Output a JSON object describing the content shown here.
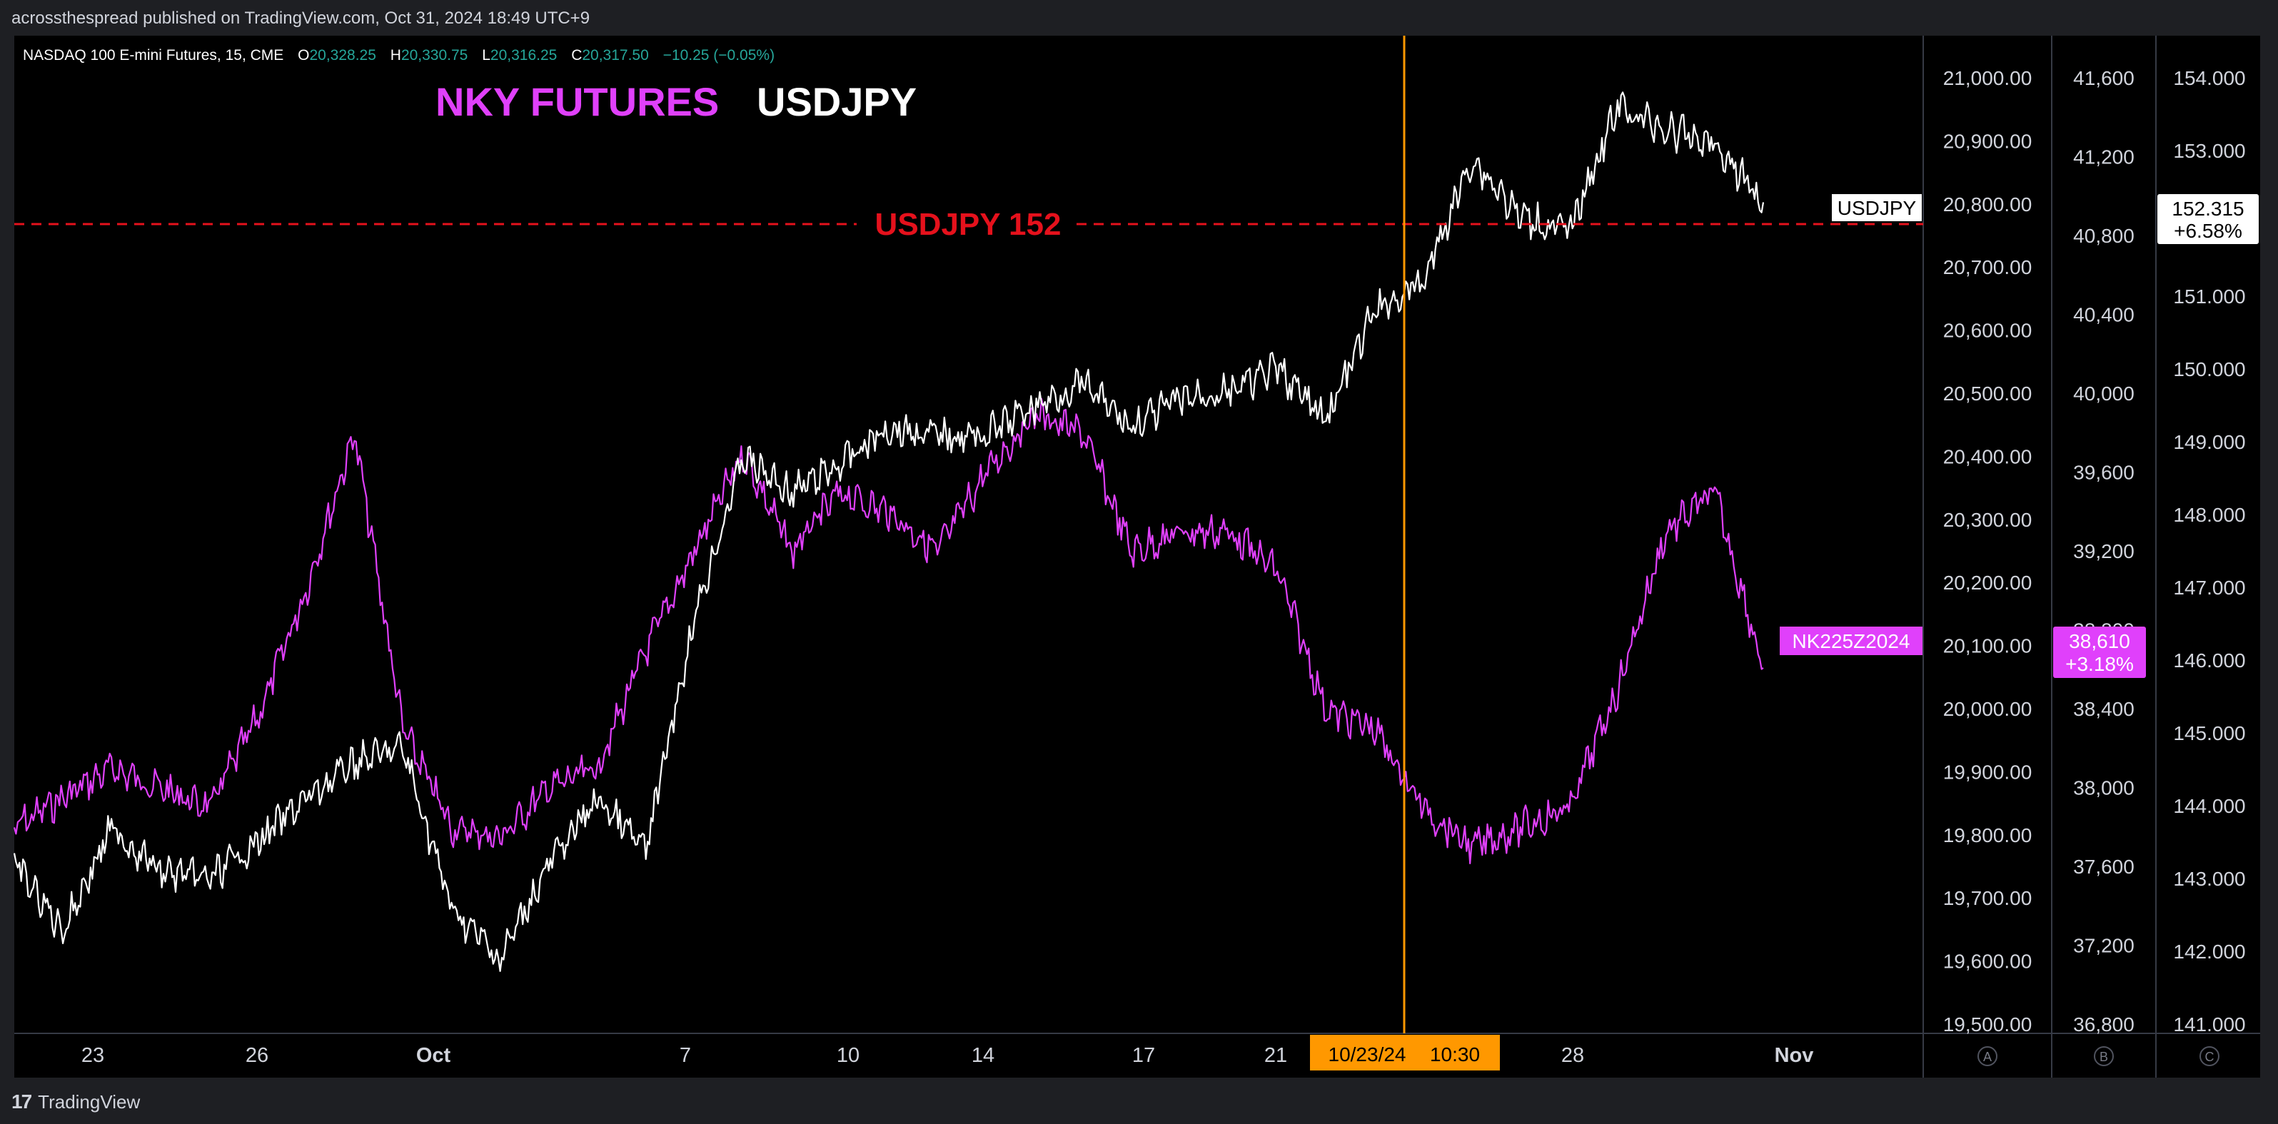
{
  "header": {
    "published": "acrossthespread published on TradingView.com, Oct 31, 2024 18:49 UTC+9"
  },
  "legend": {
    "symbol": "NASDAQ 100 E-mini Futures, 15, CME",
    "o_label": "O",
    "o_value": "20,328.25",
    "h_label": "H",
    "h_value": "20,330.75",
    "l_label": "L",
    "l_value": "20,316.25",
    "c_label": "C",
    "c_value": "20,317.50",
    "change": "−10.25 (−0.05%)"
  },
  "annotations": {
    "title_nky": "NKY FUTURES",
    "title_usdjpy": "USDJPY",
    "hline_label": "USDJPY 152",
    "usdjpy_tag": "USDJPY",
    "nk_tag": "NK225Z2024",
    "crosshair_date": "10/23/24",
    "crosshair_time": "10:30"
  },
  "colors": {
    "background": "#000000",
    "usdjpy_line": "#ffffff",
    "nky_line": "#e040fb",
    "hline": "#e5111c",
    "crosshair": "#ff9800",
    "value_up": "#26a69a"
  },
  "footer": {
    "brand": "TradingView"
  },
  "chart_data": {
    "type": "line",
    "x_ticks": [
      "23",
      "26",
      "Oct",
      "7",
      "10",
      "14",
      "17",
      "21",
      "28",
      "Nov"
    ],
    "axis_a": {
      "ticks": [
        "21,000.00",
        "20,900.00",
        "20,800.00",
        "20,700.00",
        "20,600.00",
        "20,500.00",
        "20,400.00",
        "20,300.00",
        "20,200.00",
        "20,100.00",
        "20,000.00",
        "19,900.00",
        "19,800.00",
        "19,700.00",
        "19,600.00",
        "19,500.00"
      ],
      "range": [
        19500,
        21000
      ],
      "label": "A"
    },
    "axis_b": {
      "ticks": [
        "41,600",
        "41,200",
        "40,800",
        "40,400",
        "40,000",
        "39,600",
        "39,200",
        "38,800",
        "38,400",
        "38,000",
        "37,600",
        "37,200",
        "36,800"
      ],
      "range": [
        36600,
        41600
      ],
      "label": "B"
    },
    "axis_c": {
      "ticks": [
        "154.000",
        "153.000",
        "152.000",
        "151.000",
        "150.000",
        "149.000",
        "148.000",
        "147.000",
        "146.000",
        "145.000",
        "144.000",
        "143.000",
        "142.000",
        "141.000"
      ],
      "range": [
        141,
        154
      ],
      "label": "C"
    },
    "hline": {
      "value": 152,
      "axis": "C"
    },
    "crosshair_x": "10/23/24 10:30",
    "series": [
      {
        "name": "USDJPY",
        "axis": "C",
        "last_value": "152.315",
        "last_change": "+6.58%",
        "x": [
          "Sep 20",
          "Sep 22",
          "Sep 23",
          "Sep 24",
          "Sep 25",
          "Sep 26",
          "Sep 27",
          "Sep 28",
          "Sep 29",
          "Sep 30",
          "Oct 1",
          "Oct 2",
          "Oct 3",
          "Oct 4",
          "Oct 6",
          "Oct 7",
          "Oct 8",
          "Oct 9",
          "Oct 10",
          "Oct 11",
          "Oct 13",
          "Oct 14",
          "Oct 15",
          "Oct 16",
          "Oct 17",
          "Oct 18",
          "Oct 20",
          "Oct 21",
          "Oct 22",
          "Oct 23",
          "Oct 24",
          "Oct 25",
          "Oct 27",
          "Oct 28",
          "Oct 29",
          "Oct 30",
          "Oct 31"
        ],
        "y": [
          143.2,
          142.3,
          143.7,
          143.1,
          143.0,
          143.5,
          144.1,
          144.6,
          144.8,
          142.6,
          141.9,
          143.2,
          144.1,
          143.4,
          146.6,
          148.8,
          148.3,
          148.7,
          149.2,
          149.1,
          149.1,
          149.5,
          149.8,
          149.2,
          149.6,
          149.7,
          150.0,
          149.3,
          150.8,
          151.2,
          152.9,
          152.1,
          151.9,
          153.6,
          153.3,
          153.1,
          152.3
        ]
      },
      {
        "name": "NK225Z2024",
        "axis": "B",
        "last_value": "38,610",
        "last_change": "+3.18%",
        "x": [
          "Sep 20",
          "Sep 22",
          "Sep 23",
          "Sep 24",
          "Sep 25",
          "Sep 26",
          "Sep 27",
          "Sep 28",
          "Sep 29",
          "Sep 30",
          "Oct 1",
          "Oct 2",
          "Oct 3",
          "Oct 4",
          "Oct 6",
          "Oct 7",
          "Oct 8",
          "Oct 9",
          "Oct 10",
          "Oct 11",
          "Oct 13",
          "Oct 14",
          "Oct 15",
          "Oct 16",
          "Oct 17",
          "Oct 18",
          "Oct 20",
          "Oct 21",
          "Oct 22",
          "Oct 23",
          "Oct 24",
          "Oct 25",
          "Oct 27",
          "Oct 28",
          "Oct 29",
          "Oct 30",
          "Oct 31"
        ],
        "y": [
          37800,
          37950,
          38100,
          38000,
          37900,
          38350,
          39000,
          39800,
          38300,
          37800,
          37750,
          38000,
          38100,
          38700,
          39200,
          39700,
          39200,
          39500,
          39400,
          39200,
          39600,
          39900,
          39800,
          39200,
          39300,
          39300,
          39100,
          38400,
          38300,
          37900,
          37700,
          37800,
          37900,
          38500,
          39300,
          39500,
          38610
        ]
      }
    ]
  }
}
